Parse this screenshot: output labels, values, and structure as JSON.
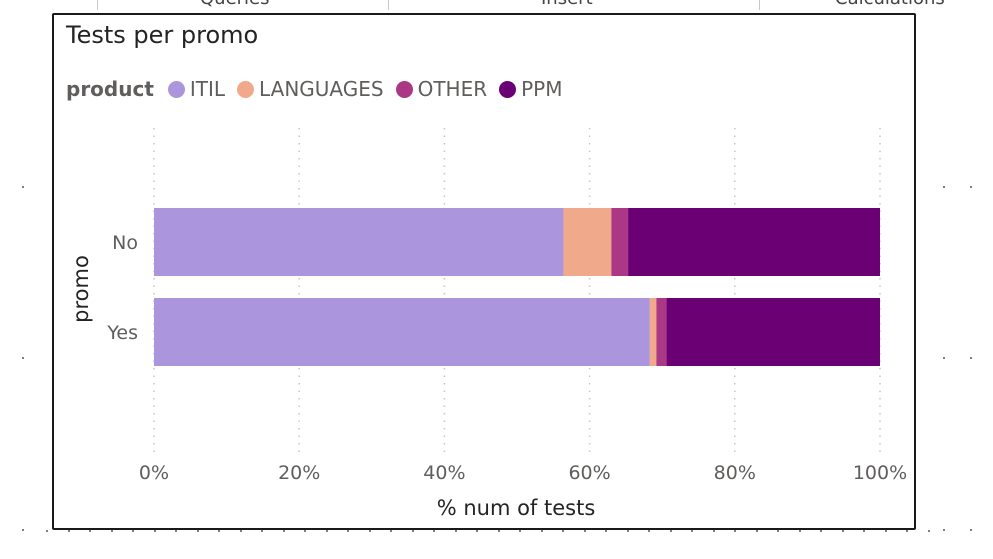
{
  "ribbon": {
    "tabs": [
      "Queries",
      "Insert",
      "Calculations"
    ]
  },
  "visual": {
    "title": "Tests per promo",
    "legend": {
      "title": "product",
      "items": [
        {
          "label": "ITIL",
          "color": "#ab96dd"
        },
        {
          "label": "LANGUAGES",
          "color": "#f0a98b"
        },
        {
          "label": "OTHER",
          "color": "#ab3885"
        },
        {
          "label": "PPM",
          "color": "#6a0073"
        }
      ]
    }
  },
  "chart_data": {
    "type": "bar",
    "orientation": "horizontal",
    "stacked": "100%",
    "title": "Tests per promo",
    "xlabel": "% num of tests",
    "ylabel": "promo",
    "xlim": [
      0,
      100
    ],
    "x_ticks": [
      "0%",
      "20%",
      "40%",
      "60%",
      "80%",
      "100%"
    ],
    "categories": [
      "No",
      "Yes"
    ],
    "legend_title": "product",
    "legend_position": "top-left",
    "grid": "vertical dotted",
    "series": [
      {
        "name": "ITIL",
        "color": "#ab96dd",
        "values": [
          56.4,
          68.3
        ]
      },
      {
        "name": "LANGUAGES",
        "color": "#f0a98b",
        "values": [
          6.6,
          0.9
        ]
      },
      {
        "name": "OTHER",
        "color": "#ab3885",
        "values": [
          2.3,
          1.4
        ]
      },
      {
        "name": "PPM",
        "color": "#6a0073",
        "values": [
          34.7,
          29.4
        ]
      }
    ]
  }
}
